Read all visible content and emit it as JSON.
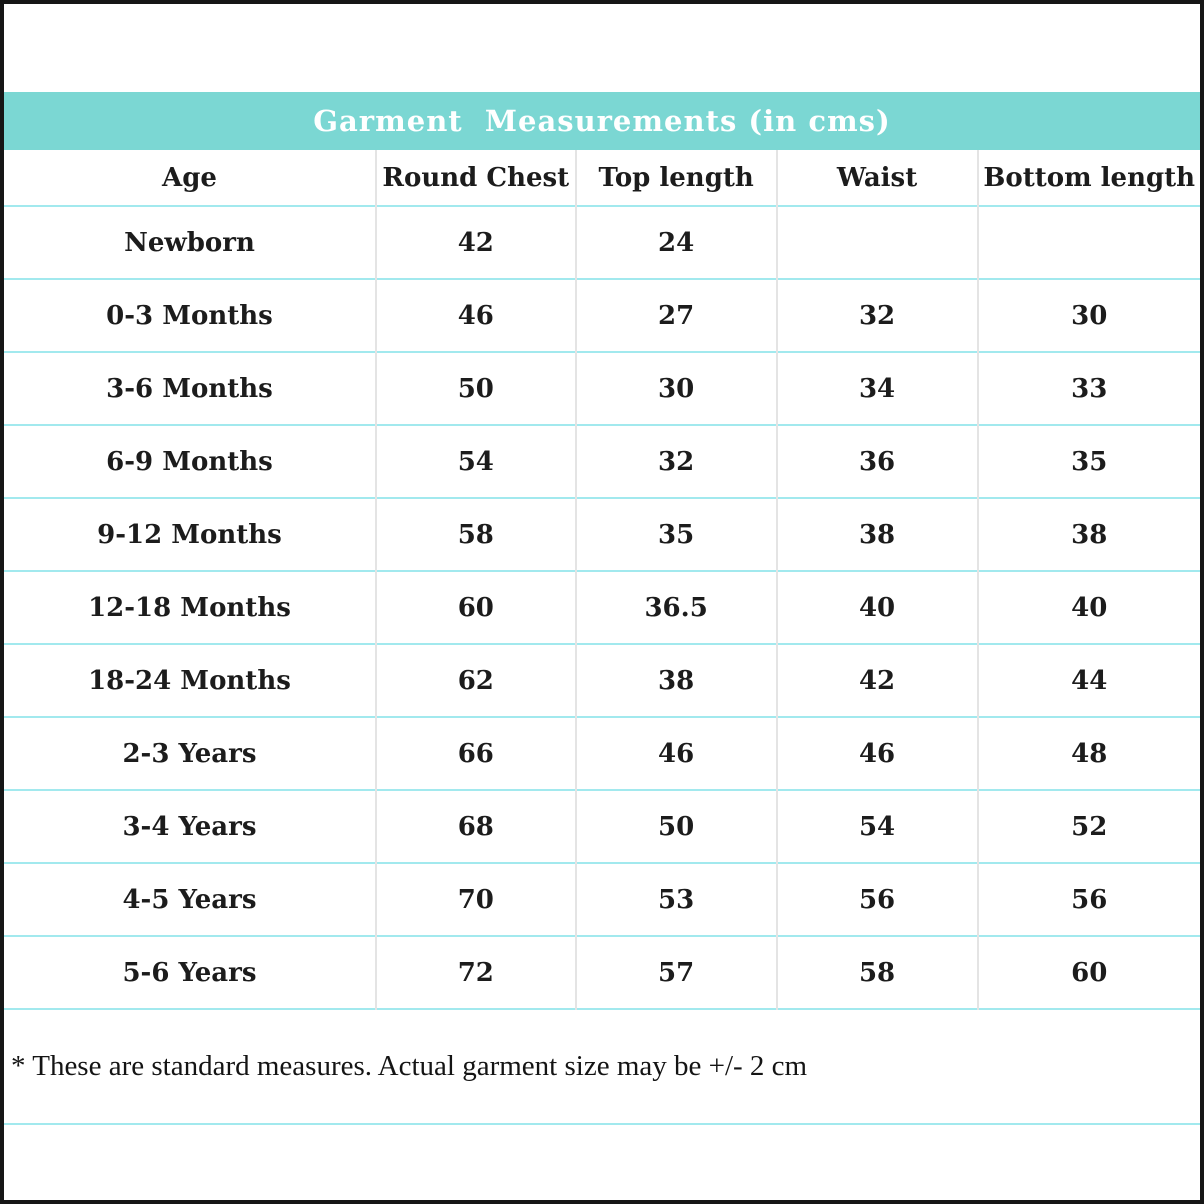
{
  "title": "Garment  Measurements (in cms)",
  "footnote": "* These are standard measures. Actual garment size may be +/- 2 cm",
  "colors": {
    "header_bg": "#7bd7d3",
    "title_text": "#ffffff",
    "row_line": "#a2e9ee",
    "column_line": "#e4e4e4",
    "outer_border": "#161616",
    "text": "#1c1c1c"
  },
  "chart_data": {
    "type": "table",
    "title": "Garment  Measurements (in cms)",
    "columns": [
      "Age",
      "Round Chest",
      "Top length",
      "Waist",
      "Bottom length"
    ],
    "rows": [
      [
        "Newborn",
        "42",
        "24",
        "",
        ""
      ],
      [
        "0-3 Months",
        "46",
        "27",
        "32",
        "30"
      ],
      [
        "3-6 Months",
        "50",
        "30",
        "34",
        "33"
      ],
      [
        "6-9 Months",
        "54",
        "32",
        "36",
        "35"
      ],
      [
        "9-12 Months",
        "58",
        "35",
        "38",
        "38"
      ],
      [
        "12-18 Months",
        "60",
        "36.5",
        "40",
        "40"
      ],
      [
        "18-24 Months",
        "62",
        "38",
        "42",
        "44"
      ],
      [
        "2-3 Years",
        "66",
        "46",
        "46",
        "48"
      ],
      [
        "3-4 Years",
        "68",
        "50",
        "54",
        "52"
      ],
      [
        "4-5 Years",
        "70",
        "53",
        "56",
        "56"
      ],
      [
        "5-6 Years",
        "72",
        "57",
        "58",
        "60"
      ]
    ]
  }
}
